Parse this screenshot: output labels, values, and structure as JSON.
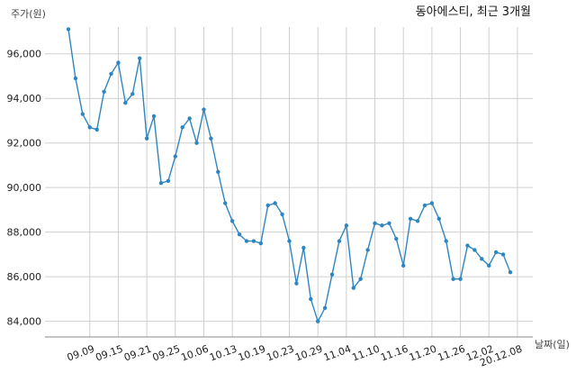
{
  "chart_data": {
    "type": "line",
    "title": "동아에스티, 최근 3개월",
    "ylabel": "주가(원)",
    "xlabel": "날짜(일)",
    "ylim": [
      83300,
      97200
    ],
    "yticks": [
      84000,
      86000,
      88000,
      90000,
      92000,
      94000,
      96000
    ],
    "ytick_labels": [
      "84,000",
      "86,000",
      "88,000",
      "90,000",
      "92,000",
      "94,000",
      "96,000"
    ],
    "x_tick_labels": [
      "09.09",
      "09.15",
      "09.21",
      "09.25",
      "10.06",
      "10.13",
      "10.19",
      "10.23",
      "10.29",
      "11.04",
      "11.10",
      "11.16",
      "11.20",
      "11.26",
      "12.02",
      "20.12.08"
    ],
    "x_tick_index": [
      3,
      7,
      11,
      15,
      19,
      23,
      27,
      31,
      35,
      39,
      43,
      47,
      51,
      55,
      59,
      63
    ],
    "grid": true,
    "line_color": "#2e86c1",
    "series": [
      {
        "values": [
          97100,
          94900,
          93300,
          92700,
          92600,
          94300,
          95100,
          95600,
          93800,
          94200,
          95800,
          92200,
          93200,
          90200,
          90300,
          91400,
          92700,
          93100,
          92000,
          93500,
          92200,
          90700,
          89300,
          88500,
          87900,
          87600,
          87600,
          87500,
          89200,
          89300,
          88800,
          87600,
          85700,
          87300,
          85000,
          84000,
          84600,
          86100,
          87600,
          88300,
          85500,
          85900,
          87200,
          88400,
          88300,
          88400,
          87700,
          86500,
          88600,
          88500,
          89200,
          89300,
          88600,
          87600,
          85900,
          85900,
          87400,
          87200,
          86800,
          86500,
          87100,
          87000,
          86200
        ]
      }
    ]
  }
}
